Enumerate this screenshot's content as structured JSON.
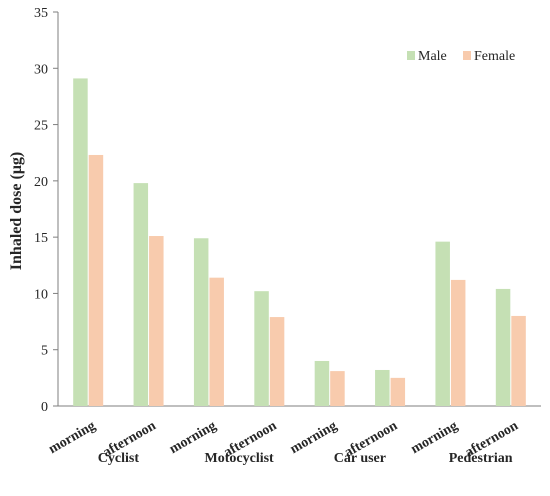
{
  "chart_data": {
    "type": "bar",
    "ylabel": "Inhaled dose (μg)",
    "xlabel": "",
    "ylim": [
      0,
      35
    ],
    "yticks": [
      0,
      5,
      10,
      15,
      20,
      25,
      30,
      35
    ],
    "grid": false,
    "legend_position": "top-right",
    "categories": [
      "morning",
      "afternoon",
      "morning",
      "afternoon",
      "morning",
      "afternoon",
      "morning",
      "afternoon"
    ],
    "groups": [
      "Cyclist",
      "Motocyclist",
      "Car user",
      "Pedestrian"
    ],
    "series": [
      {
        "name": "Male",
        "color": "#c5e0b4",
        "values": [
          29.1,
          19.8,
          14.9,
          10.2,
          4.0,
          3.2,
          14.6,
          10.4
        ]
      },
      {
        "name": "Female",
        "color": "#f8cbad",
        "values": [
          22.3,
          15.1,
          11.4,
          7.9,
          3.1,
          2.5,
          11.2,
          8.0
        ]
      }
    ]
  }
}
